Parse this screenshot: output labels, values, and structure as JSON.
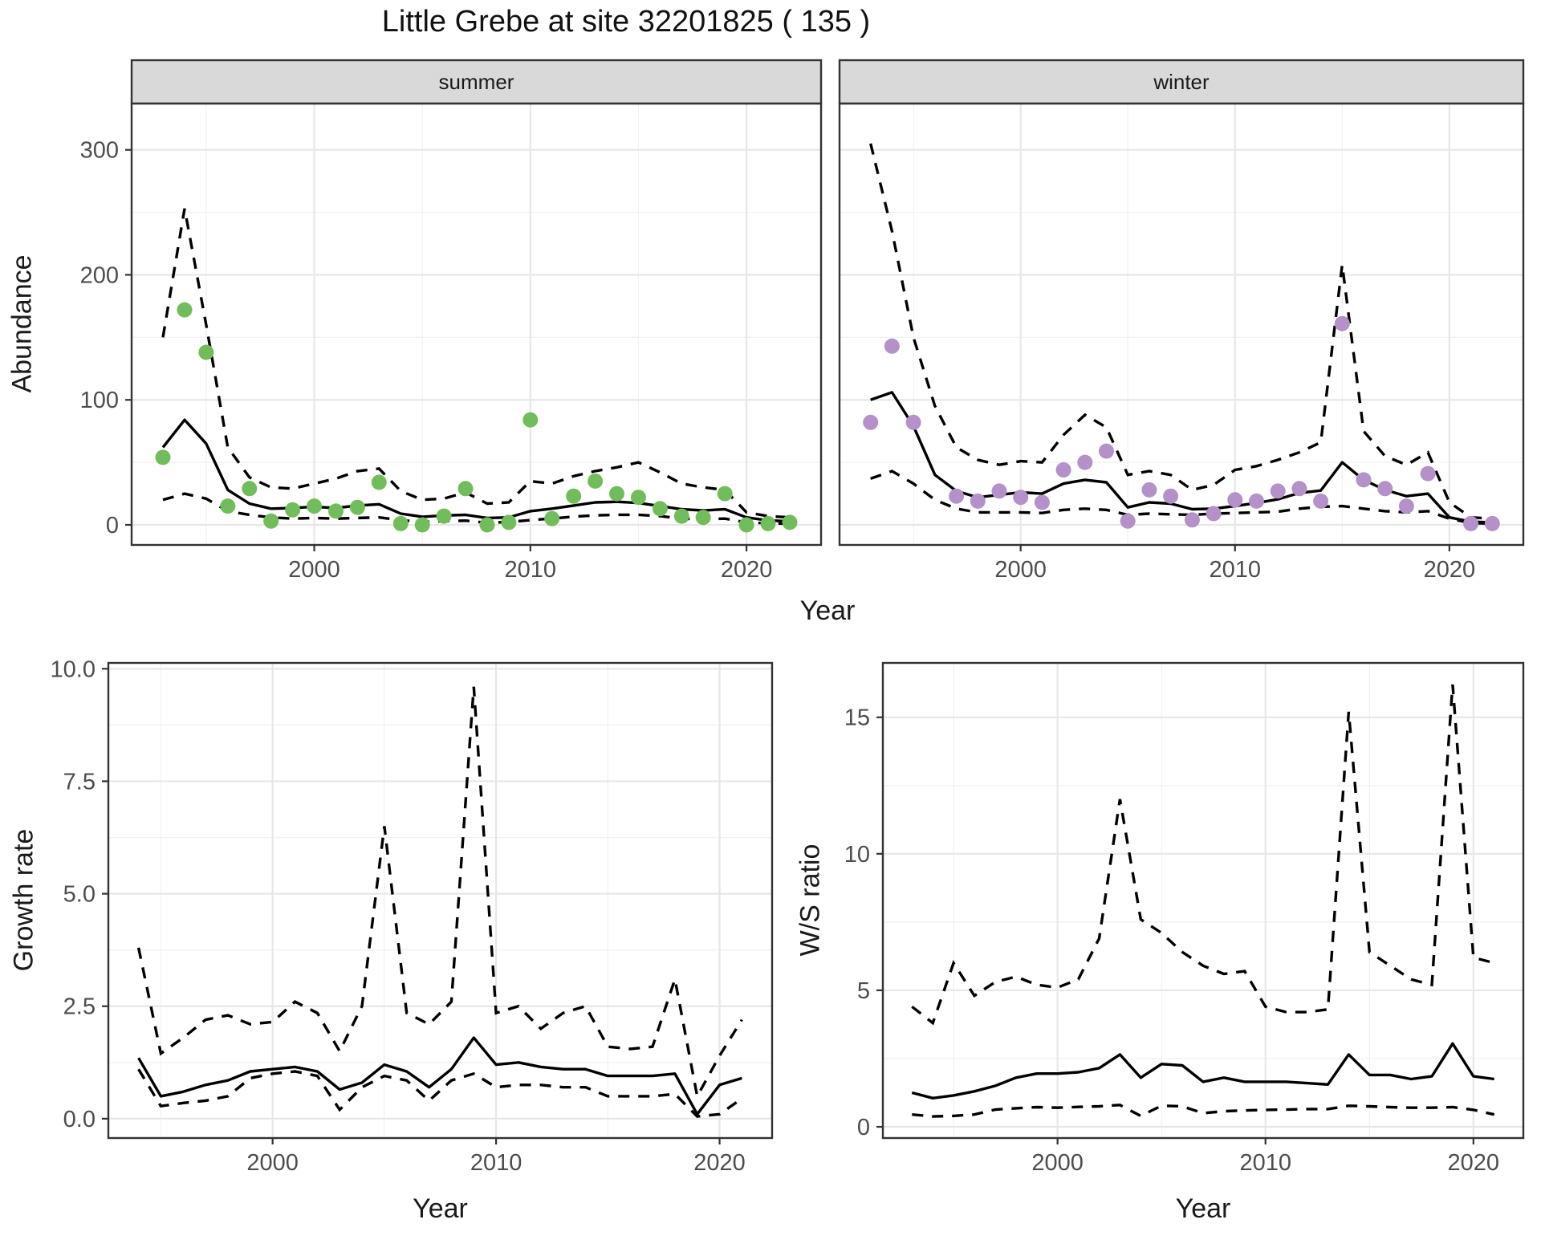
{
  "title": "Little Grebe at site 32201825 ( 135 )",
  "facets": {
    "summer": "summer",
    "winter": "winter"
  },
  "axes": {
    "abundance": "Abundance",
    "year": "Year",
    "growth": "Growth rate",
    "ws": "W/S ratio"
  },
  "colors": {
    "summer_point": "#72bd5b",
    "winter_point": "#b491c8",
    "line": "#000000",
    "strip_bg": "#d9d9d9",
    "panel_border": "#333333",
    "grid_major": "#e7e7e7",
    "grid_minor": "#f2f2f2",
    "axis_text": "#4d4d4d",
    "tick_mark": "#333333"
  },
  "chart_data": [
    {
      "id": "abundance-summer",
      "type": "line+scatter",
      "facet_label": "summer",
      "ylabel": "Abundance",
      "xlabel": "Year",
      "year_from": 1993,
      "year_to": 2022,
      "xlim": [
        1993,
        2022
      ],
      "ylim": [
        0,
        321
      ],
      "xticks": [
        2000,
        2010,
        2020
      ],
      "yticks": [
        0,
        100,
        200,
        300
      ],
      "ytick_labels": [
        "0",
        "100",
        "200",
        "300"
      ],
      "point_color_key": "summer_point",
      "observed": [
        54,
        172,
        138,
        15,
        29,
        3,
        12,
        15,
        11,
        14,
        34,
        1,
        0,
        7,
        29,
        0,
        2,
        84,
        5,
        23,
        35,
        25,
        22,
        13,
        7,
        6,
        25,
        0,
        1,
        2
      ],
      "fit": [
        62,
        84,
        65,
        28,
        17,
        13,
        13.5,
        14.5,
        13.5,
        15.5,
        16.5,
        9,
        6.5,
        7.5,
        8,
        5.5,
        6,
        11,
        13,
        15.5,
        18,
        18.5,
        17.5,
        15,
        12.5,
        11.5,
        12.5,
        6,
        3.5,
        2.8
      ],
      "ci_upper": [
        150,
        253,
        160,
        62,
        38,
        30,
        29,
        33,
        37,
        43,
        45,
        27,
        20,
        21,
        26,
        17,
        18,
        35,
        33,
        39,
        43,
        46,
        50,
        42,
        33,
        30,
        28,
        10,
        7,
        6
      ],
      "ci_lower": [
        20,
        25,
        21,
        11,
        8,
        6,
        5,
        5.5,
        5,
        5.5,
        6,
        3.8,
        2.3,
        3,
        3.4,
        1.7,
        2.3,
        3.8,
        5.1,
        6.6,
        7.6,
        8.1,
        8.1,
        7,
        5,
        4.5,
        5,
        2,
        1.2,
        1
      ]
    },
    {
      "id": "abundance-winter",
      "type": "line+scatter",
      "facet_label": "winter",
      "ylabel": "Abundance",
      "xlabel": "Year",
      "year_from": 1993,
      "year_to": 2022,
      "xlim": [
        1993,
        2022
      ],
      "ylim": [
        0,
        321
      ],
      "xticks": [
        2000,
        2010,
        2020
      ],
      "yticks": [
        0,
        100,
        200,
        300
      ],
      "ytick_labels": [
        "0",
        "100",
        "200",
        "300"
      ],
      "point_color_key": "winter_point",
      "observed": [
        82,
        143,
        82,
        null,
        23,
        19,
        27,
        22,
        18,
        44,
        50,
        59,
        3,
        28,
        23,
        4,
        9,
        20,
        19,
        27,
        29,
        19,
        161,
        36,
        29,
        15,
        41,
        null,
        1,
        1
      ],
      "fit": [
        100,
        106,
        79,
        40,
        27,
        22,
        24,
        26,
        25,
        33,
        36,
        34,
        14,
        18,
        17,
        12.5,
        13,
        15,
        17.5,
        20.5,
        25.5,
        27.5,
        50,
        36,
        28,
        23,
        25,
        6,
        2.5,
        2
      ],
      "ci_upper": [
        305,
        235,
        150,
        95,
        62,
        52,
        48,
        51,
        50,
        72,
        88,
        78,
        40,
        43,
        40,
        28,
        32,
        44,
        47,
        52,
        58,
        66,
        208,
        75,
        55,
        48,
        58,
        18,
        6,
        5
      ],
      "ci_lower": [
        37,
        43,
        33,
        20,
        13,
        10,
        10,
        10,
        9.5,
        12,
        13,
        12,
        8,
        9,
        8.5,
        8,
        9,
        9.5,
        10,
        10.5,
        13,
        14.5,
        15,
        13,
        11,
        10,
        11,
        5,
        1.5,
        1
      ]
    },
    {
      "id": "growth-rate",
      "type": "line",
      "ylabel": "Growth rate",
      "xlabel": "Year",
      "year_from": 1994,
      "year_to": 2021,
      "xlim": [
        1994,
        2021
      ],
      "ylim": [
        0.05,
        9.65
      ],
      "xticks": [
        2000,
        2010,
        2020
      ],
      "yticks": [
        0,
        2.5,
        5,
        7.5,
        10
      ],
      "ytick_labels": [
        "0.0",
        "2.5",
        "5.0",
        "7.5",
        "10.0"
      ],
      "fit": [
        1.35,
        0.5,
        0.6,
        0.75,
        0.85,
        1.05,
        1.1,
        1.15,
        1.05,
        0.65,
        0.8,
        1.2,
        1.05,
        0.7,
        1.1,
        1.8,
        1.2,
        1.25,
        1.15,
        1.1,
        1.1,
        0.95,
        0.95,
        0.95,
        1.0,
        0.1,
        0.75,
        0.9
      ],
      "ci_upper": [
        3.8,
        1.45,
        1.8,
        2.2,
        2.3,
        2.1,
        2.15,
        2.6,
        2.35,
        1.5,
        2.5,
        6.5,
        2.35,
        2.1,
        2.6,
        9.6,
        2.35,
        2.5,
        2.0,
        2.35,
        2.5,
        1.6,
        1.55,
        1.6,
        3.1,
        0.5,
        1.4,
        2.2
      ],
      "ci_lower": [
        1.1,
        0.28,
        0.35,
        0.4,
        0.5,
        0.9,
        1.0,
        1.05,
        0.95,
        0.2,
        0.7,
        0.95,
        0.85,
        0.4,
        0.85,
        1.0,
        0.7,
        0.75,
        0.75,
        0.7,
        0.7,
        0.5,
        0.5,
        0.5,
        0.55,
        0.05,
        0.1,
        0.45
      ]
    },
    {
      "id": "ws-ratio",
      "type": "line",
      "ylabel": "W/S ratio",
      "xlabel": "Year",
      "year_from": 1993,
      "year_to": 2021,
      "xlim": [
        1993,
        2021
      ],
      "ylim": [
        0.38,
        16.2
      ],
      "xticks": [
        2000,
        2010,
        2020
      ],
      "yticks": [
        0,
        5,
        10,
        15
      ],
      "ytick_labels": [
        "0",
        "5",
        "10",
        "15"
      ],
      "fit": [
        1.25,
        1.05,
        1.15,
        1.3,
        1.5,
        1.8,
        1.95,
        1.95,
        2.0,
        2.15,
        2.65,
        1.8,
        2.3,
        2.25,
        1.65,
        1.8,
        1.65,
        1.65,
        1.65,
        1.6,
        1.55,
        2.65,
        1.9,
        1.9,
        1.75,
        1.85,
        3.05,
        1.85,
        1.75
      ],
      "ci_upper": [
        4.4,
        3.8,
        6.0,
        4.8,
        5.3,
        5.5,
        5.2,
        5.1,
        5.4,
        6.9,
        12.0,
        7.6,
        7.1,
        6.4,
        5.9,
        5.6,
        5.7,
        4.4,
        4.2,
        4.2,
        4.3,
        15.2,
        6.4,
        5.9,
        5.4,
        5.2,
        16.2,
        6.2,
        6.0
      ],
      "ci_lower": [
        0.45,
        0.38,
        0.4,
        0.45,
        0.63,
        0.68,
        0.72,
        0.7,
        0.73,
        0.75,
        0.8,
        0.4,
        0.77,
        0.75,
        0.5,
        0.57,
        0.6,
        0.62,
        0.63,
        0.65,
        0.65,
        0.77,
        0.75,
        0.72,
        0.7,
        0.7,
        0.72,
        0.62,
        0.45
      ]
    }
  ]
}
